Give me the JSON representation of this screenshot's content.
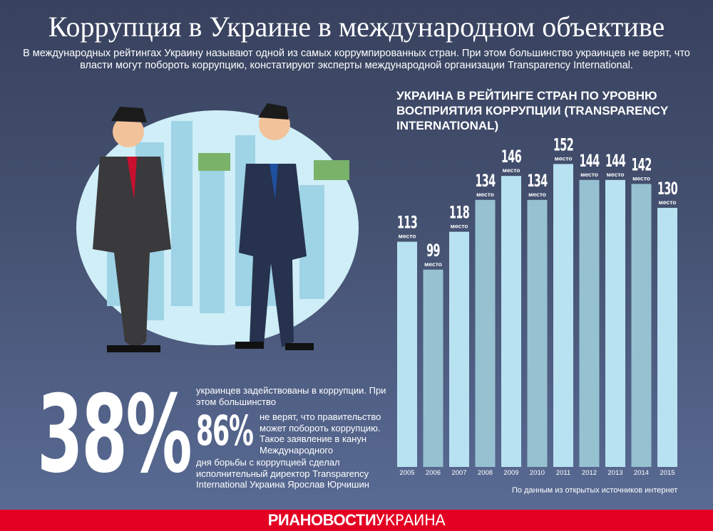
{
  "header": {
    "title": "Коррупция в Украине в международном объективе",
    "subtitle": "В международных рейтингах Украину называют одной из самых коррумпированных стран. При этом большинство украинцев не верят, что власти могут побороть коррупцию, констатируют эксперты международной организации Transparency International."
  },
  "chart_data": {
    "type": "bar",
    "title": "УКРАИНА В РЕЙТИНГЕ СТРАН ПО УРОВНЮ ВОСПРИЯТИЯ КОРРУПЦИИ (TRANSPARENCY INTERNATIONAL)",
    "categories": [
      "2005",
      "2006",
      "2007",
      "2008",
      "2009",
      "2010",
      "2011",
      "2012",
      "2013",
      "2014",
      "2015"
    ],
    "values": [
      113,
      99,
      118,
      134,
      146,
      134,
      152,
      144,
      144,
      142,
      130
    ],
    "value_suffix": "место",
    "ylim": [
      0,
      160
    ],
    "grid": false,
    "colors": {
      "light": "#b8e2f1",
      "dark": "#96c1d1"
    }
  },
  "stats": {
    "main_percent": "38%",
    "main_text": "украинцев задействованы в коррупции. При этом большинство",
    "second_percent": "86%",
    "second_text": "не верят, что правительство может побороть коррупцию. Такое заявление в канун Международного",
    "second_text_cont": "дня борьбы с коррупцией сделал исполнительный директор Transparency International Украина Ярослав Юрчишин"
  },
  "source": "По данным из открытых источников интернет",
  "footer": {
    "logo_bold": "РИАНОВОСТИ",
    "logo_light": "УКРАИНА",
    "color": "#e30022"
  }
}
